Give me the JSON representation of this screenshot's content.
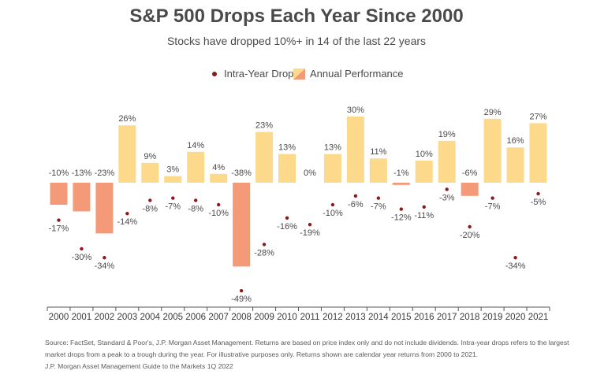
{
  "title": "S&P 500 Drops Each Year Since 2000",
  "subtitle": "Stocks have dropped 10%+ in 14 of the last 22 years",
  "legend": {
    "drop": "Intra-Year Drop",
    "annual": "Annual Performance"
  },
  "colors": {
    "positive_bar": "#fdd98c",
    "negative_bar": "#f49a79",
    "drop_dot": "#8b1a1a",
    "axis": "#555555",
    "text": "#4a4a4a"
  },
  "source": {
    "line1": "Source: FactSet, Standard & Poor's, J.P. Morgan Asset Management. Returns are based on price index only and do not include dividends. Intra-year drops refers to the largest",
    "line2": "market drops from a peak to a trough during the year. For illustrative purposes only. Returns shown are calendar year returns from 2000 to 2021.",
    "line3": "J.P. Morgan Asset Management Guide to the Markets 1Q 2022"
  },
  "chart_data": {
    "type": "bar",
    "categories": [
      "2000",
      "2001",
      "2002",
      "2003",
      "2004",
      "2005",
      "2006",
      "2007",
      "2008",
      "2009",
      "2010",
      "2011",
      "2012",
      "2013",
      "2014",
      "2015",
      "2016",
      "2017",
      "2018",
      "2019",
      "2020",
      "2021"
    ],
    "series": [
      {
        "name": "Annual Performance",
        "type": "bar",
        "values": [
          -10,
          -13,
          -23,
          26,
          9,
          3,
          14,
          4,
          -38,
          23,
          13,
          0,
          13,
          30,
          11,
          -1,
          10,
          19,
          -6,
          29,
          16,
          27
        ],
        "labels": [
          "-10%",
          "-13%",
          "-23%",
          "26%",
          "9%",
          "3%",
          "14%",
          "4%",
          "-38%",
          "23%",
          "13%",
          "0%",
          "13%",
          "30%",
          "11%",
          "-1%",
          "10%",
          "19%",
          "-6%",
          "29%",
          "16%",
          "27%"
        ]
      },
      {
        "name": "Intra-Year Drop",
        "type": "scatter",
        "values": [
          -17,
          -30,
          -34,
          -14,
          -8,
          -7,
          -8,
          -10,
          -49,
          -28,
          -16,
          -19,
          -10,
          -6,
          -7,
          -12,
          -11,
          -3,
          -20,
          -7,
          -34,
          -5
        ],
        "labels": [
          "-17%",
          "-30%",
          "-34%",
          "-14%",
          "-8%",
          "-7%",
          "-8%",
          "-10%",
          "-49%",
          "-28%",
          "-16%",
          "-19%",
          "-10%",
          "-6%",
          "-7%",
          "-12%",
          "-11%",
          "-3%",
          "-20%",
          "-7%",
          "-34%",
          "-5%"
        ]
      }
    ],
    "title": "S&P 500 Drops Each Year Since 2000",
    "xlabel": "",
    "ylabel": "",
    "ylim": [
      -55,
      35
    ],
    "grid": false,
    "legend_position": "top-center"
  }
}
